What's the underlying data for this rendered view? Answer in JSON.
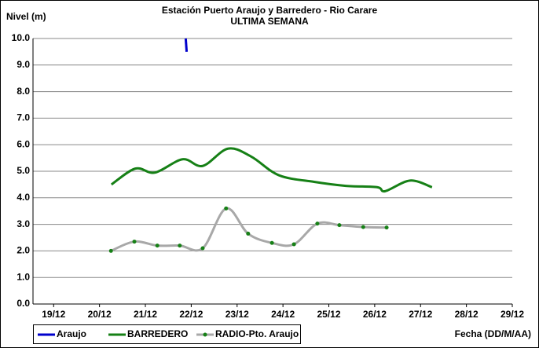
{
  "chart_data": {
    "type": "line",
    "title": "Estación Puerto Araujo y Barredero - Rio Carare",
    "subtitle": "ULTIMA SEMANA",
    "y_label": "Nivel (m)",
    "x_label": "Fecha (DD/M/AA)",
    "xlim": [
      18.55,
      29
    ],
    "xticks": [
      {
        "value": 19,
        "label": "19/12"
      },
      {
        "value": 20,
        "label": "20/12"
      },
      {
        "value": 21,
        "label": "21/12"
      },
      {
        "value": 22,
        "label": "22/12"
      },
      {
        "value": 23,
        "label": "23/12"
      },
      {
        "value": 24,
        "label": "24/12"
      },
      {
        "value": 25,
        "label": "25/12"
      },
      {
        "value": 26,
        "label": "26/12"
      },
      {
        "value": 27,
        "label": "27/12"
      },
      {
        "value": 28,
        "label": "28/12"
      },
      {
        "value": 29,
        "label": "29/12"
      }
    ],
    "ylim": [
      0,
      10
    ],
    "yticks": [
      {
        "value": 0,
        "label": "0.0"
      },
      {
        "value": 1,
        "label": "1.0"
      },
      {
        "value": 2,
        "label": "2.0"
      },
      {
        "value": 3,
        "label": "3.0"
      },
      {
        "value": 4,
        "label": "4.0"
      },
      {
        "value": 5,
        "label": "5.0"
      },
      {
        "value": 6,
        "label": "6.0"
      },
      {
        "value": 7,
        "label": "7.0"
      },
      {
        "value": 8,
        "label": "8.0"
      },
      {
        "value": 9,
        "label": "9.0"
      },
      {
        "value": 10,
        "label": "10.0"
      }
    ],
    "grid": true,
    "series": [
      {
        "name": "Araujo",
        "color": "#0000cc",
        "markers": false,
        "x": [
          21.88,
          21.9
        ],
        "values": [
          10,
          9.5
        ]
      },
      {
        "name": "BARREDERO",
        "color": "#168016",
        "markers": false,
        "x": [
          20.26,
          20.78,
          21.21,
          21.81,
          22.25,
          22.8,
          23.31,
          23.91,
          24.68,
          25.37,
          26.05,
          26.23,
          26.77,
          27.25
        ],
        "values": [
          4.5,
          5.1,
          4.95,
          5.45,
          5.2,
          5.85,
          5.55,
          4.85,
          4.6,
          4.45,
          4.4,
          4.25,
          4.65,
          4.4
        ]
      },
      {
        "name": "RADIO-Pto. Araujo",
        "color": "#a8a8a8",
        "marker_color": "#168016",
        "markers": true,
        "x": [
          20.25,
          20.76,
          21.26,
          21.75,
          22.25,
          22.76,
          23.24,
          23.76,
          24.24,
          24.75,
          25.23,
          25.75,
          26.26
        ],
        "values": [
          2.0,
          2.35,
          2.2,
          2.2,
          2.1,
          3.6,
          2.65,
          2.3,
          2.25,
          3.03,
          2.97,
          2.9,
          2.88
        ]
      }
    ]
  }
}
